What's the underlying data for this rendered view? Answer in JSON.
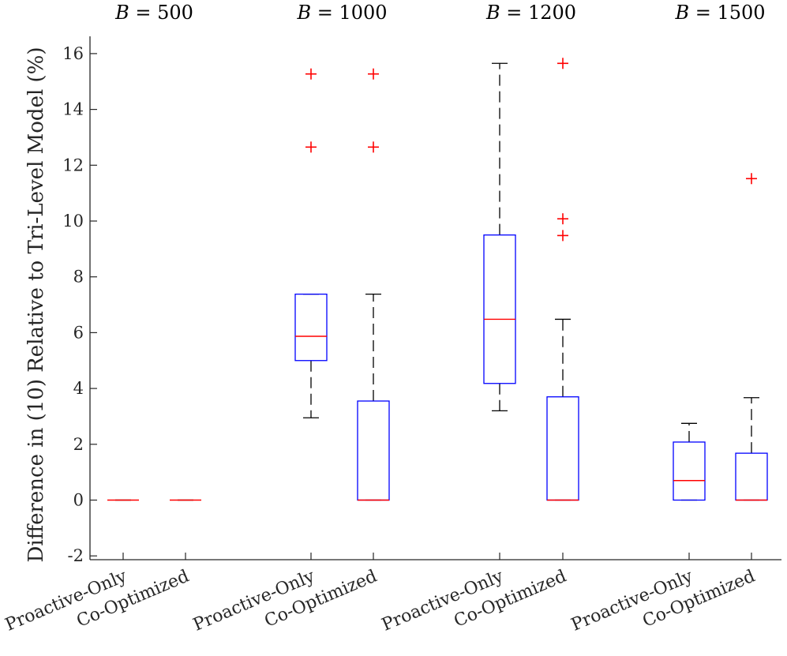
{
  "chart_data": {
    "type": "box",
    "title": "",
    "ylabel": "Difference in (10) Relative to Tri-Level Model (%)",
    "xlabel": "",
    "ylim": [
      -2.2,
      16.5
    ],
    "yticks": [
      -2,
      0,
      2,
      4,
      6,
      8,
      10,
      12,
      14,
      16
    ],
    "ytick_labels": [
      "-2",
      "0",
      "2",
      "4",
      "6",
      "8",
      "10",
      "12",
      "14",
      "16"
    ],
    "groups": [
      {
        "label_var": "B",
        "label_eq": "=",
        "label_val": "500",
        "boxes": [
          {
            "name": "Proactive-Only",
            "q1": 0,
            "median": 0,
            "q3": 0,
            "whisker_low": 0,
            "whisker_high": 0,
            "outliers": []
          },
          {
            "name": "Co-Optimized",
            "q1": 0,
            "median": 0,
            "q3": 0,
            "whisker_low": 0,
            "whisker_high": 0,
            "outliers": []
          }
        ]
      },
      {
        "label_var": "B",
        "label_eq": "=",
        "label_val": "1000",
        "boxes": [
          {
            "name": "Proactive-Only",
            "q1": 5.0,
            "median": 5.87,
            "q3": 7.38,
            "whisker_low": 2.95,
            "whisker_high": 7.38,
            "outliers": [
              12.65,
              15.27
            ]
          },
          {
            "name": "Co-Optimized",
            "q1": 0,
            "median": 0,
            "q3": 3.55,
            "whisker_low": 0,
            "whisker_high": 7.38,
            "outliers": [
              12.65,
              15.27
            ]
          }
        ]
      },
      {
        "label_var": "B",
        "label_eq": "=",
        "label_val": "1200",
        "boxes": [
          {
            "name": "Proactive-Only",
            "q1": 4.18,
            "median": 6.48,
            "q3": 9.5,
            "whisker_low": 3.2,
            "whisker_high": 15.65,
            "outliers": []
          },
          {
            "name": "Co-Optimized",
            "q1": 0,
            "median": 0,
            "q3": 3.7,
            "whisker_low": 0,
            "whisker_high": 6.48,
            "outliers": [
              9.48,
              10.08,
              15.65
            ]
          }
        ]
      },
      {
        "label_var": "B",
        "label_eq": "=",
        "label_val": "1500",
        "boxes": [
          {
            "name": "Proactive-Only",
            "q1": 0,
            "median": 0.7,
            "q3": 2.08,
            "whisker_low": 0,
            "whisker_high": 2.75,
            "outliers": []
          },
          {
            "name": "Co-Optimized",
            "q1": 0,
            "median": 0,
            "q3": 1.68,
            "whisker_low": 0,
            "whisker_high": 3.67,
            "outliers": [
              11.52
            ]
          }
        ]
      }
    ],
    "colors": {
      "box": "#0000ff",
      "median": "#ff0000",
      "outlier": "#ff0000",
      "whisker": "#000000",
      "axis": "#262626"
    }
  }
}
